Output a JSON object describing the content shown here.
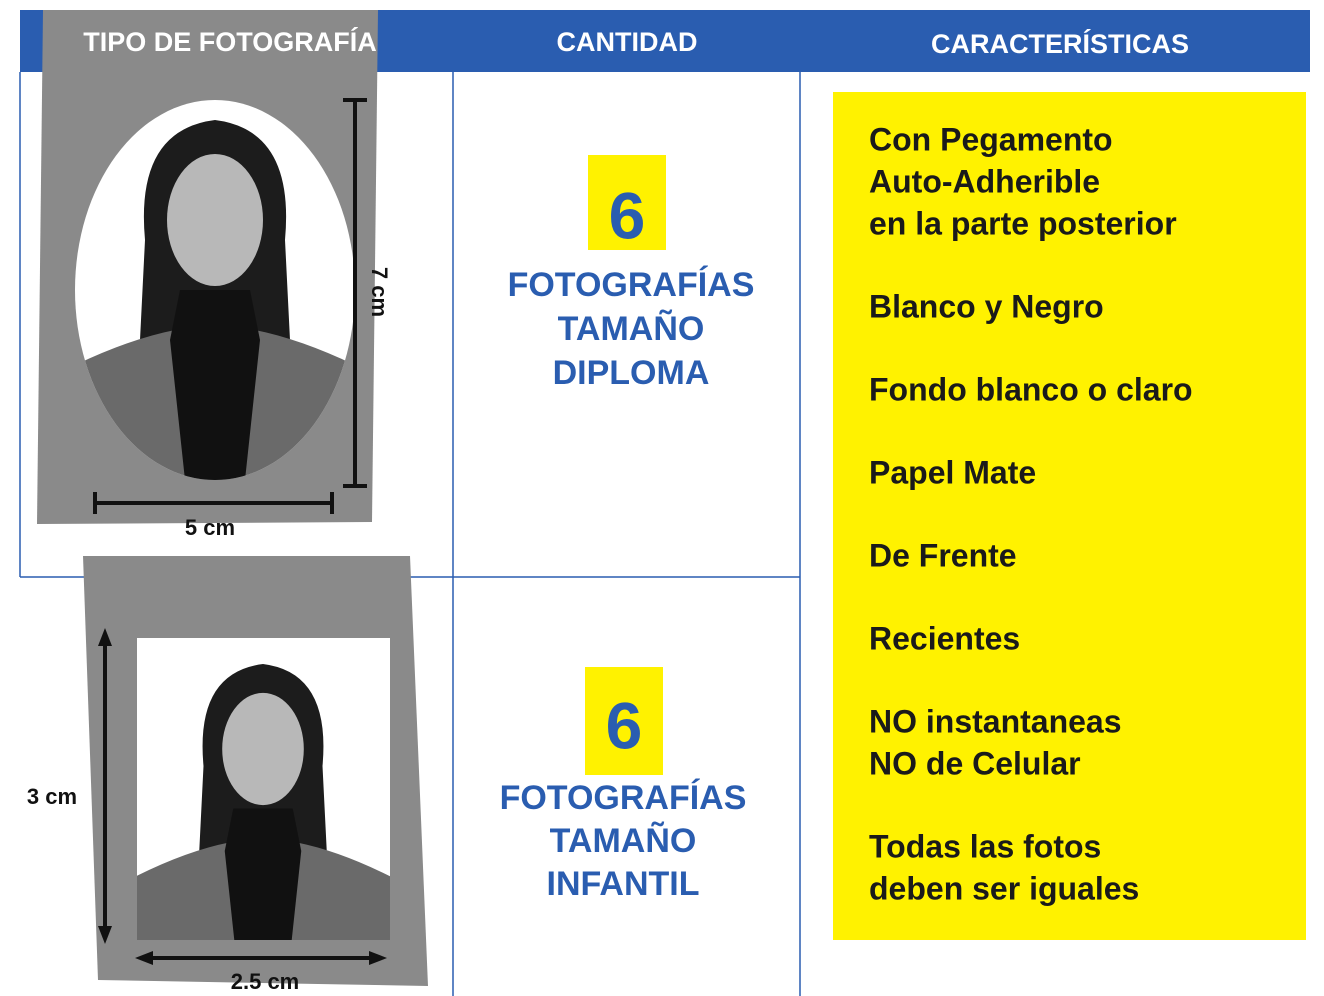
{
  "table": {
    "headers": [
      "TIPO DE FOTOGRAFÍA",
      "CANTIDAD",
      "CARACTERÍSTICAS"
    ],
    "rows": [
      {
        "quantity": "6",
        "label_lines": [
          "FOTOGRAFÍAS",
          "TAMAÑO",
          "DIPLOMA"
        ],
        "height": "7 cm",
        "width": "5 cm"
      },
      {
        "quantity": "6",
        "label_lines": [
          "FOTOGRAFÍAS",
          "TAMAÑO",
          "INFANTIL"
        ],
        "height": "3 cm",
        "width": "2.5 cm"
      }
    ]
  },
  "characteristics": [
    [
      "Con Pegamento",
      "Auto-Adherible",
      "en la parte posterior"
    ],
    [
      "Blanco y Negro"
    ],
    [
      "Fondo blanco o claro"
    ],
    [
      "Papel Mate"
    ],
    [
      "De Frente"
    ],
    [
      "Recientes"
    ],
    [
      "NO instantaneas",
      "NO de Celular"
    ],
    [
      "Todas las fotos",
      "deben ser iguales"
    ]
  ]
}
